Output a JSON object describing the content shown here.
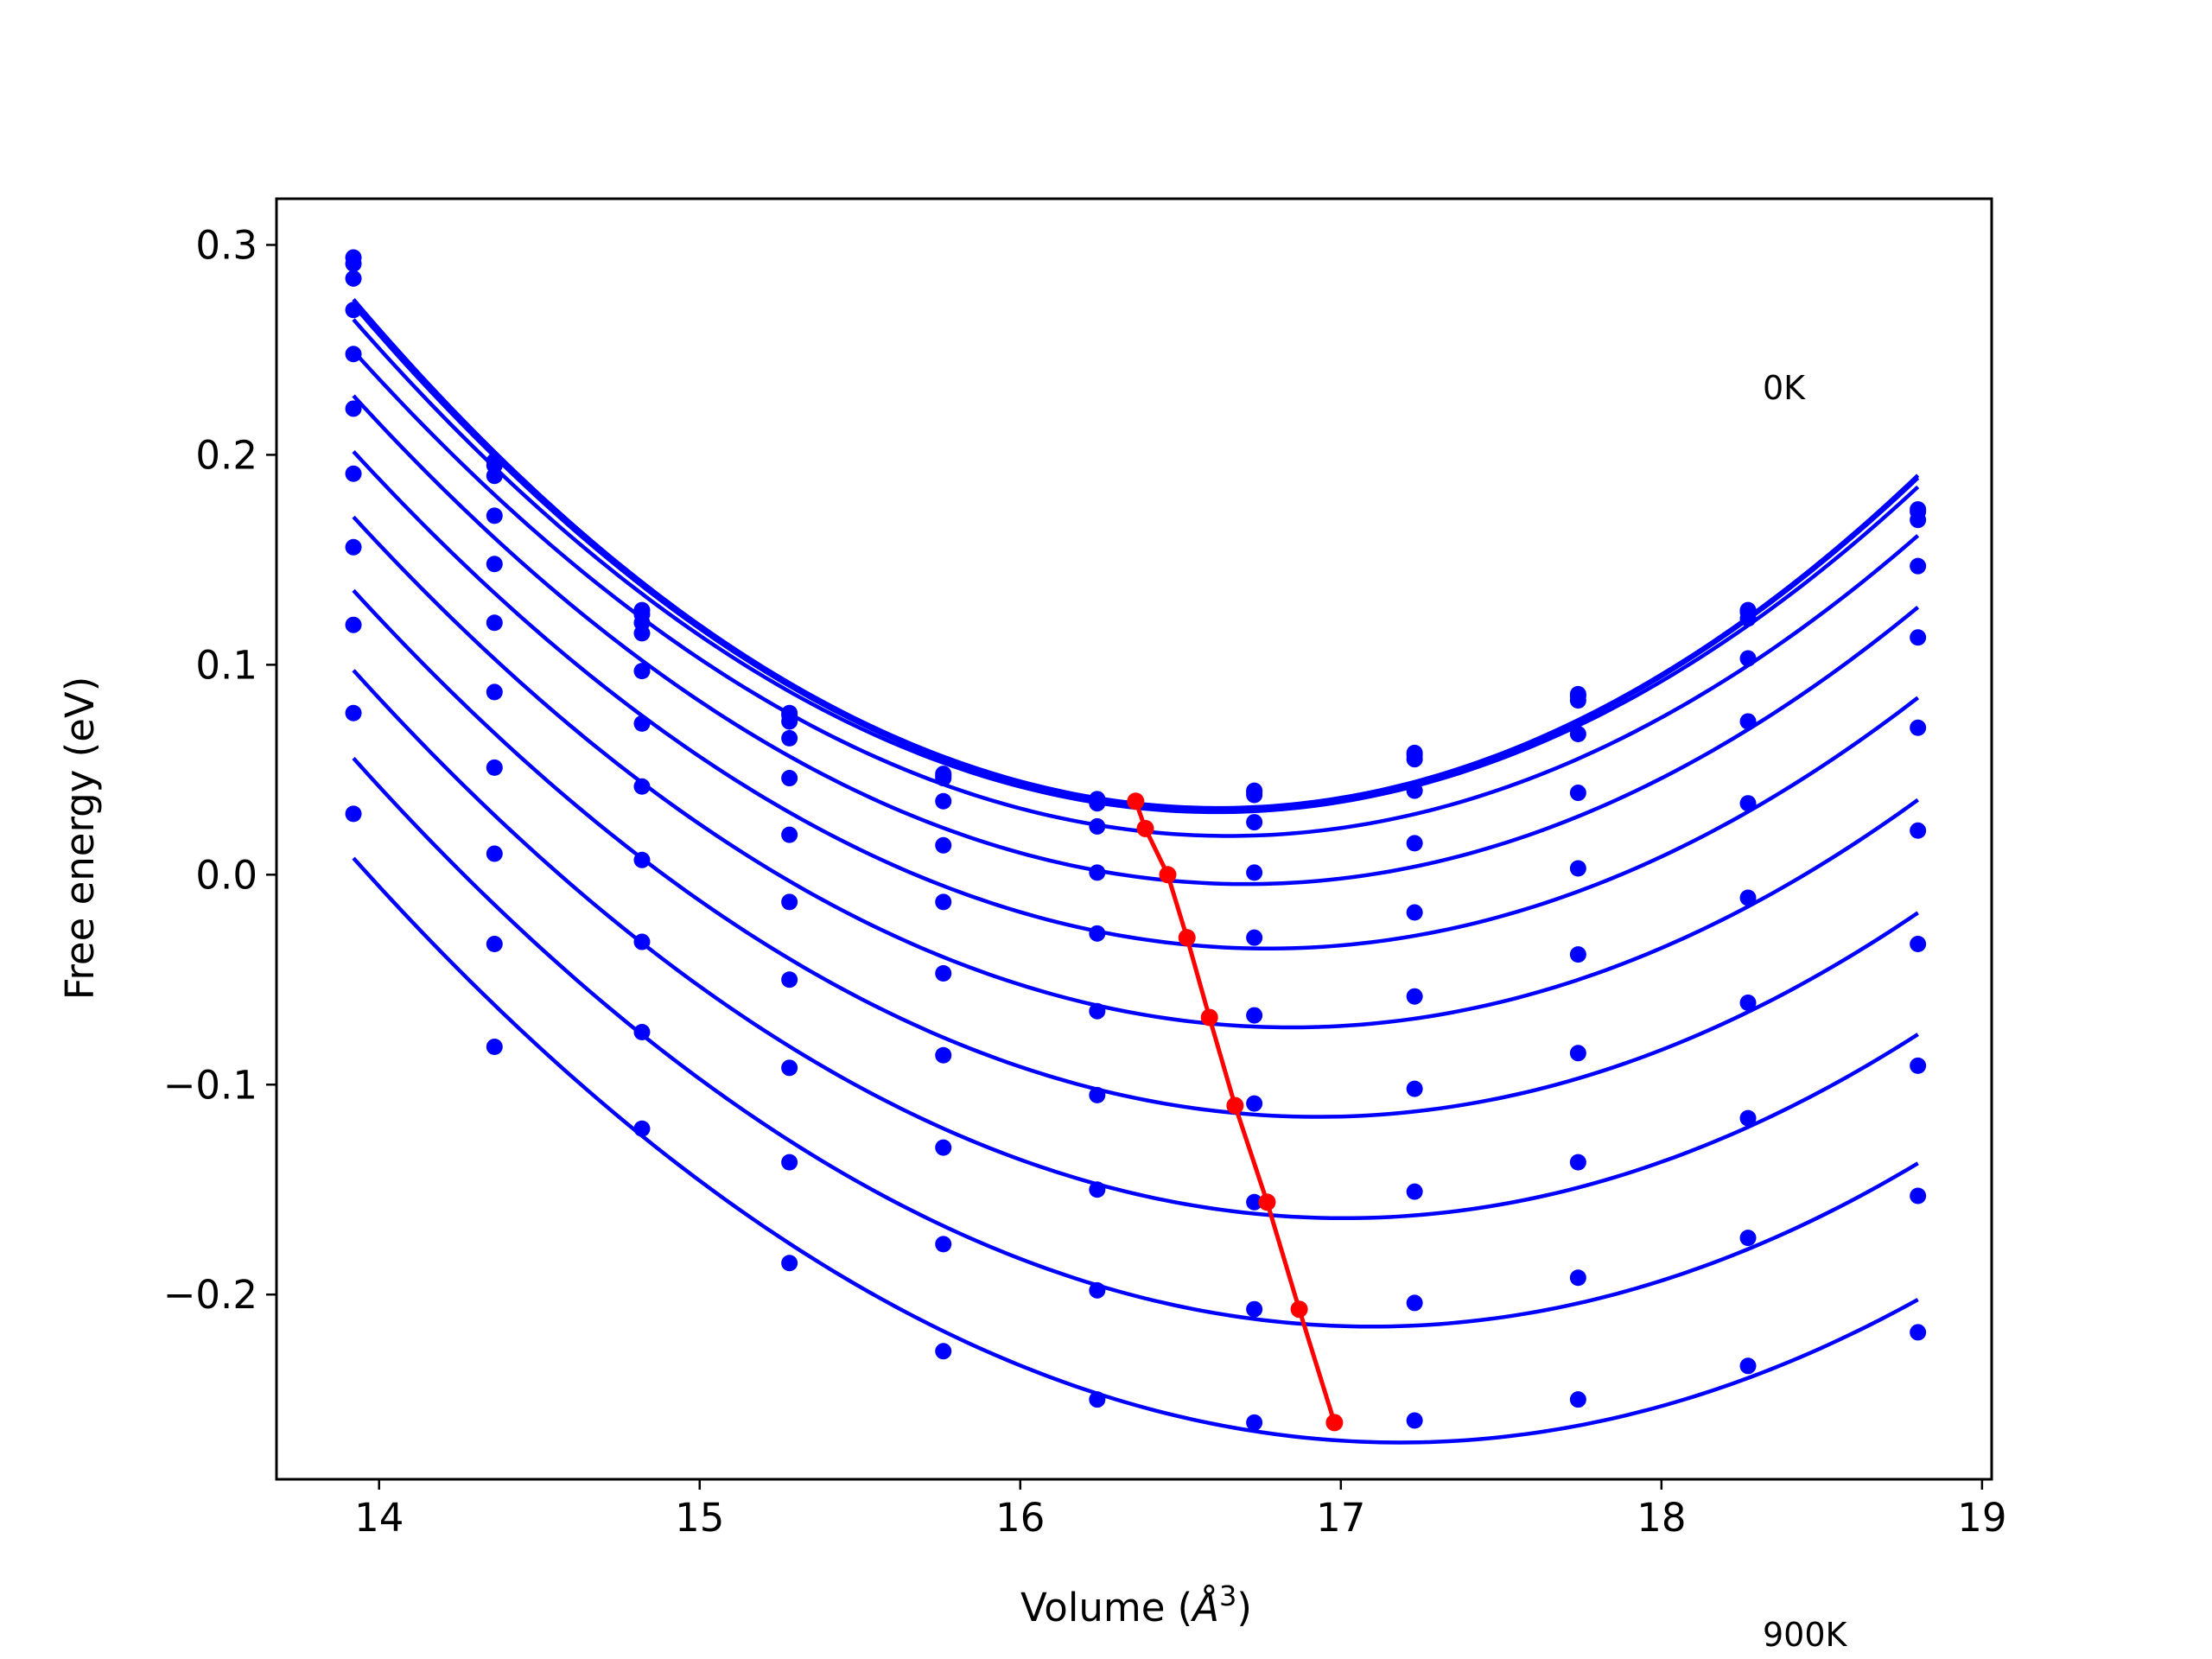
{
  "chart_data": {
    "type": "line",
    "title": "",
    "xlabel": "Volume (Å³)",
    "xlabel_main": "Volume (",
    "xlabel_A": "Å",
    "xlabel_sup": "3",
    "xlabel_close": ")",
    "ylabel": "Free energy (eV)",
    "xlim": [
      13.68,
      19.03
    ],
    "ylim": [
      -0.288,
      0.322
    ],
    "xticks": [
      14,
      15,
      16,
      17,
      18,
      19
    ],
    "xtick_labels": [
      "14",
      "15",
      "16",
      "17",
      "18",
      "19"
    ],
    "yticks": [
      -0.2,
      -0.1,
      0.0,
      0.1,
      0.2,
      0.3
    ],
    "ytick_labels": [
      "−0.2",
      "−0.1",
      "0.0",
      "0.1",
      "0.2",
      "0.3"
    ],
    "grid": false,
    "annotations": [
      "0K",
      "900K"
    ],
    "curve_color": "#0000ff",
    "min_color": "#ff0000",
    "volumes": [
      13.92,
      14.36,
      14.82,
      15.28,
      15.76,
      16.24,
      16.73,
      17.23,
      17.74,
      18.27,
      18.8
    ],
    "series": [
      {
        "values": [
          0.294,
          0.197,
          0.126,
          0.077,
          0.048,
          0.036,
          0.04,
          0.058,
          0.086,
          0.126,
          0.174
        ]
      },
      {
        "values": [
          0.291,
          0.195,
          0.124,
          0.076,
          0.047,
          0.035,
          0.039,
          0.057,
          0.085,
          0.125,
          0.173
        ]
      },
      {
        "values": [
          0.284,
          0.19,
          0.12,
          0.073,
          0.046,
          0.034,
          0.038,
          0.055,
          0.083,
          0.122,
          0.169
        ]
      },
      {
        "values": [
          0.269,
          0.171,
          0.115,
          0.065,
          0.035,
          0.023,
          0.025,
          0.04,
          0.067,
          0.103,
          0.147
        ]
      },
      {
        "values": [
          0.248,
          0.148,
          0.097,
          0.046,
          0.014,
          0.001,
          0.001,
          0.015,
          0.039,
          0.073,
          0.113
        ]
      },
      {
        "values": [
          0.222,
          0.12,
          0.072,
          0.019,
          -0.013,
          -0.028,
          -0.03,
          -0.018,
          0.003,
          0.034,
          0.07
        ]
      },
      {
        "values": [
          0.191,
          0.087,
          0.042,
          -0.013,
          -0.047,
          -0.065,
          -0.067,
          -0.058,
          -0.038,
          -0.011,
          0.021
        ]
      },
      {
        "values": [
          0.156,
          0.051,
          0.007,
          -0.05,
          -0.086,
          -0.105,
          -0.109,
          -0.102,
          -0.085,
          -0.061,
          -0.033
        ]
      },
      {
        "values": [
          0.119,
          0.01,
          -0.032,
          -0.092,
          -0.13,
          -0.15,
          -0.156,
          -0.151,
          -0.137,
          -0.116,
          -0.091
        ]
      },
      {
        "values": [
          0.077,
          -0.033,
          -0.075,
          -0.137,
          -0.176,
          -0.198,
          -0.207,
          -0.204,
          -0.192,
          -0.173,
          -0.153
        ]
      },
      {
        "values": [
          0.029,
          -0.082,
          -0.121,
          -0.185,
          -0.227,
          -0.25,
          -0.261,
          -0.26,
          -0.25,
          -0.234,
          -0.218
        ]
      }
    ],
    "minima": [
      {
        "x": 16.36,
        "y": 0.035
      },
      {
        "x": 16.39,
        "y": 0.022
      },
      {
        "x": 16.46,
        "y": 0.0
      },
      {
        "x": 16.52,
        "y": -0.03
      },
      {
        "x": 16.59,
        "y": -0.068
      },
      {
        "x": 16.67,
        "y": -0.11
      },
      {
        "x": 16.77,
        "y": -0.156
      },
      {
        "x": 16.87,
        "y": -0.207
      },
      {
        "x": 16.98,
        "y": -0.261
      }
    ]
  }
}
